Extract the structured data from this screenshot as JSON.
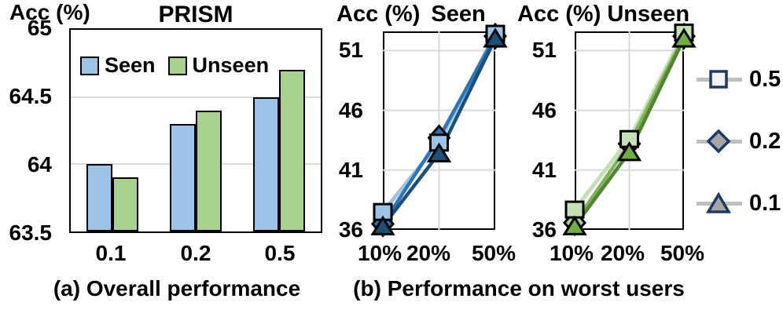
{
  "captions": {
    "a": "(a) Overall performance",
    "b": "(b) Performance on worst users"
  },
  "legend": {
    "line_color": "#BFBFBF",
    "border_color": "#1F3864",
    "items": [
      {
        "label": "0.5",
        "marker": "square",
        "fill": "#F2F2F2"
      },
      {
        "label": "0.2",
        "marker": "diamond",
        "fill": "#A6A6A6"
      },
      {
        "label": "0.1",
        "marker": "triangle",
        "fill": "#A6A6A6"
      }
    ]
  },
  "chart_data": [
    {
      "id": "overall",
      "type": "bar",
      "title": "PRISM",
      "ylabel": "Acc (%)",
      "categories": [
        "0.1",
        "0.2",
        "0.5"
      ],
      "ytick_labels": [
        "65",
        "64.5",
        "64",
        "63.5"
      ],
      "ylim": [
        63.5,
        65
      ],
      "gridlines": [
        64.5,
        64
      ],
      "legend_position": "top-inside",
      "series": [
        {
          "name": "Seen",
          "color": "#9DC3E6",
          "values": [
            64.0,
            64.3,
            64.5
          ]
        },
        {
          "name": "Unseen",
          "color": "#A9D18E",
          "values": [
            63.9,
            64.4,
            64.7
          ]
        }
      ]
    },
    {
      "id": "worst-seen",
      "type": "line",
      "title": "Seen",
      "ylabel": "Acc (%)",
      "categories": [
        "10%",
        "20%",
        "50%"
      ],
      "ytick_labels": [
        "51",
        "46",
        "41",
        "36"
      ],
      "ylim": [
        36,
        52.6
      ],
      "gridlines": [
        51,
        46,
        41
      ],
      "vgridlines_frac": [
        0.5
      ],
      "marker_draw_order": [
        1,
        0,
        2
      ],
      "series": [
        {
          "name": "0.5",
          "marker": "square",
          "line_color": "#9DC3E6",
          "marker_fill": "#9DC3E6",
          "values": [
            37.5,
            43.3,
            52.4
          ]
        },
        {
          "name": "0.2",
          "marker": "diamond",
          "line_color": "#2E75B6",
          "marker_fill": "#2E75B6",
          "values": [
            36.5,
            43.7,
            52.2
          ]
        },
        {
          "name": "0.1",
          "marker": "triangle",
          "line_color": "#1F4E79",
          "marker_fill": "#1F4E79",
          "values": [
            36.3,
            42.4,
            52.0
          ]
        }
      ]
    },
    {
      "id": "worst-unseen",
      "type": "line",
      "title": "Unseen",
      "ylabel": "Acc (%)",
      "categories": [
        "10%",
        "20%",
        "50%"
      ],
      "ytick_labels": [
        "51",
        "46",
        "41",
        "36"
      ],
      "ylim": [
        36,
        52.6
      ],
      "gridlines": [
        51,
        46,
        41
      ],
      "vgridlines_frac": [
        0.5
      ],
      "marker_draw_order": [
        1,
        0,
        2
      ],
      "series": [
        {
          "name": "0.5",
          "marker": "square",
          "line_color": "#C5E0B4",
          "marker_fill": "#C5E0B4",
          "values": [
            37.7,
            43.6,
            52.5
          ]
        },
        {
          "name": "0.2",
          "marker": "diamond",
          "line_color": "#7EB356",
          "marker_fill": "#A9D18E",
          "values": [
            36.6,
            43.2,
            52.2
          ]
        },
        {
          "name": "0.1",
          "marker": "triangle",
          "line_color": "#538135",
          "marker_fill": "#70AD47",
          "values": [
            36.3,
            42.5,
            52.0
          ]
        }
      ]
    }
  ]
}
